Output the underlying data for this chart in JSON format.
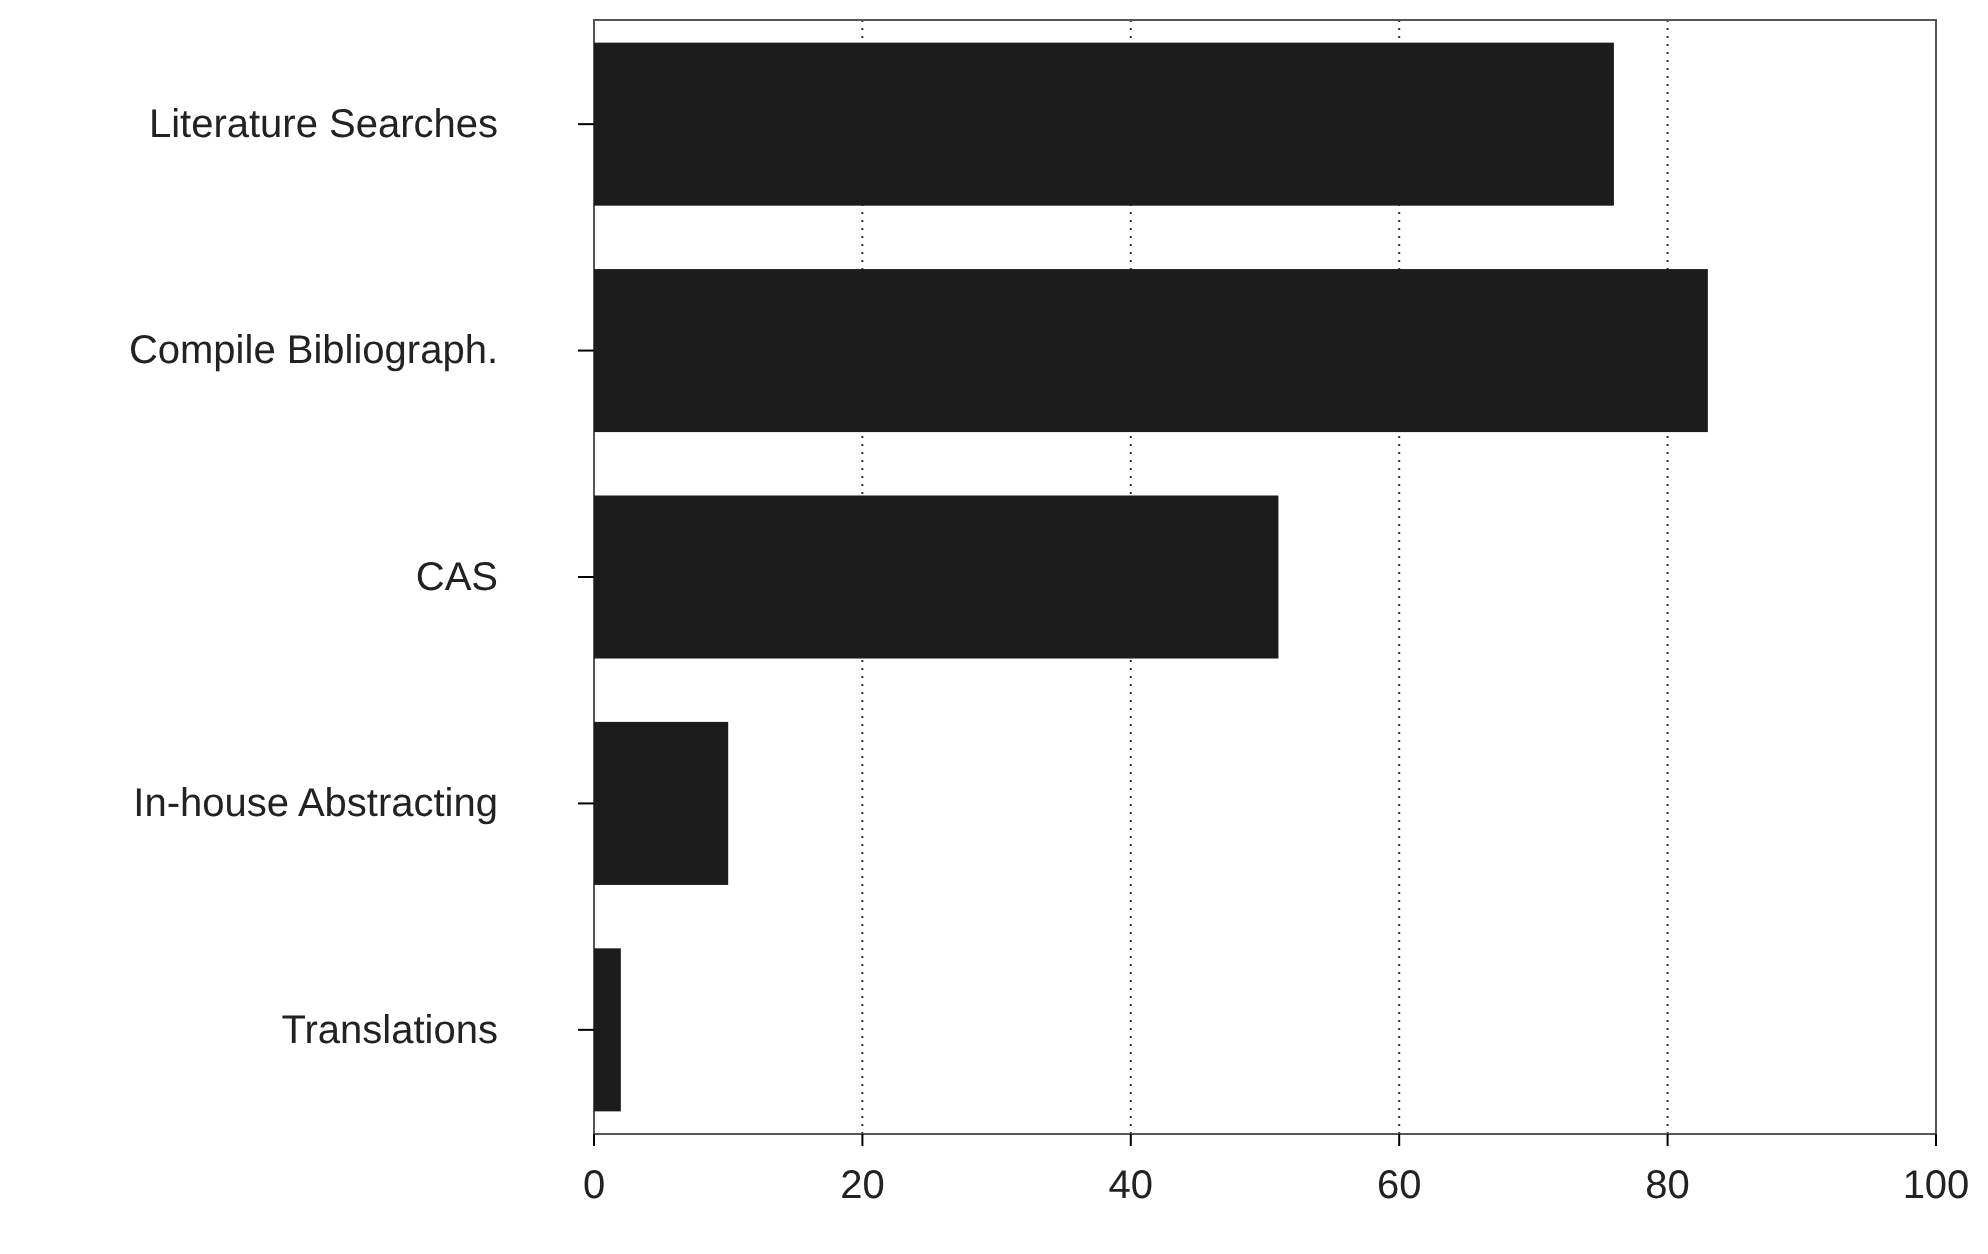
{
  "chart_data": {
    "type": "bar",
    "orientation": "horizontal",
    "categories": [
      "Literature Searches",
      "Compile Bibliograph.",
      "CAS",
      "In-house Abstracting",
      "Translations"
    ],
    "values": [
      76,
      83,
      51,
      10,
      2
    ],
    "color": "#1c1c1c",
    "xlim": [
      0,
      100
    ],
    "xticks": [
      0,
      20,
      40,
      60,
      80,
      100
    ],
    "grid": "x"
  }
}
